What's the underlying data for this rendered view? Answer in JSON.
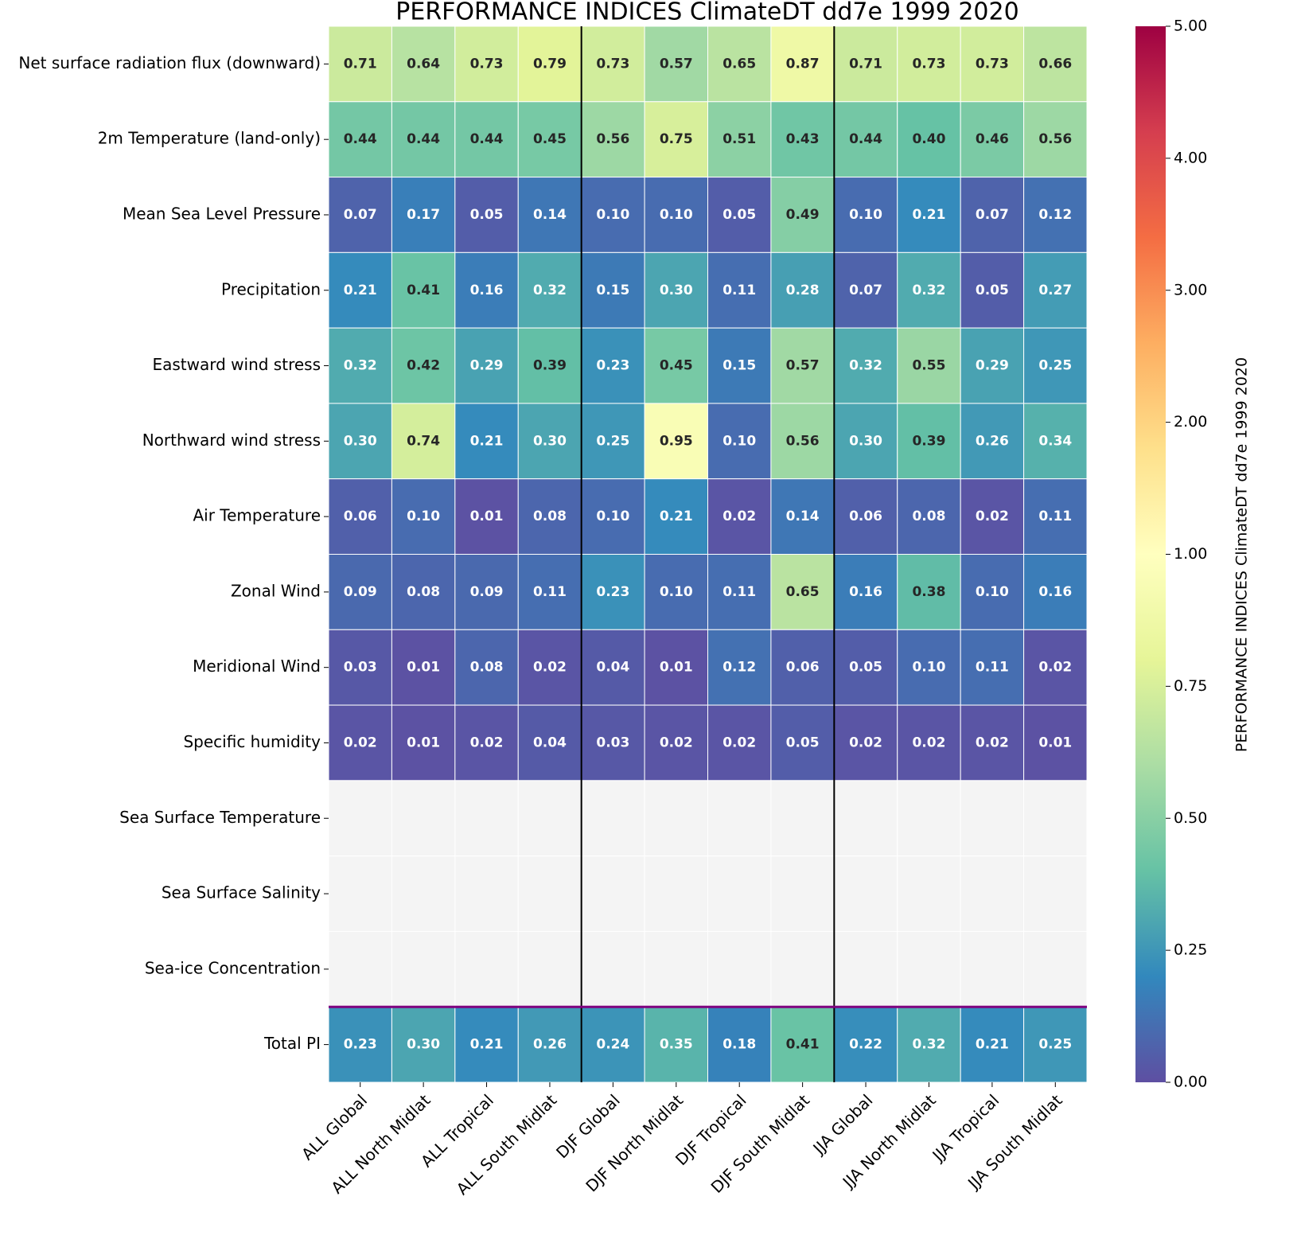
{
  "chart_data": {
    "type": "heatmap",
    "title": "PERFORMANCE INDICES ClimateDT dd7e 1999 2020",
    "rows": [
      "Net surface radiation flux (downward)",
      "2m Temperature (land-only)",
      "Mean Sea Level Pressure",
      "Precipitation",
      "Eastward wind stress",
      "Northward wind stress",
      "Air Temperature",
      "Zonal Wind",
      "Meridional Wind",
      "Specific humidity",
      "Sea Surface Temperature",
      "Sea Surface Salinity",
      "Sea-ice Concentration",
      "Total PI"
    ],
    "categories": [
      "ALL Global",
      "ALL North Midlat",
      "ALL Tropical",
      "ALL South Midlat",
      "DJF Global",
      "DJF North Midlat",
      "DJF Tropical",
      "DJF South Midlat",
      "JJA Global",
      "JJA North Midlat",
      "JJA Tropical",
      "JJA South Midlat"
    ],
    "values": [
      [
        0.71,
        0.64,
        0.73,
        0.79,
        0.73,
        0.57,
        0.65,
        0.87,
        0.71,
        0.73,
        0.73,
        0.66
      ],
      [
        0.44,
        0.44,
        0.44,
        0.45,
        0.56,
        0.75,
        0.51,
        0.43,
        0.44,
        0.4,
        0.46,
        0.56
      ],
      [
        0.07,
        0.17,
        0.05,
        0.14,
        0.1,
        0.1,
        0.05,
        0.49,
        0.1,
        0.21,
        0.07,
        0.12
      ],
      [
        0.21,
        0.41,
        0.16,
        0.32,
        0.15,
        0.3,
        0.11,
        0.28,
        0.07,
        0.32,
        0.05,
        0.27
      ],
      [
        0.32,
        0.42,
        0.29,
        0.39,
        0.23,
        0.45,
        0.15,
        0.57,
        0.32,
        0.55,
        0.29,
        0.25
      ],
      [
        0.3,
        0.74,
        0.21,
        0.3,
        0.25,
        0.95,
        0.1,
        0.56,
        0.3,
        0.39,
        0.26,
        0.34
      ],
      [
        0.06,
        0.1,
        0.01,
        0.08,
        0.1,
        0.21,
        0.02,
        0.14,
        0.06,
        0.08,
        0.02,
        0.11
      ],
      [
        0.09,
        0.08,
        0.09,
        0.11,
        0.23,
        0.1,
        0.11,
        0.65,
        0.16,
        0.38,
        0.1,
        0.16
      ],
      [
        0.03,
        0.01,
        0.08,
        0.02,
        0.04,
        0.01,
        0.12,
        0.06,
        0.05,
        0.1,
        0.11,
        0.02
      ],
      [
        0.02,
        0.01,
        0.02,
        0.04,
        0.03,
        0.02,
        0.02,
        0.05,
        0.02,
        0.02,
        0.02,
        0.01
      ],
      [
        null,
        null,
        null,
        null,
        null,
        null,
        null,
        null,
        null,
        null,
        null,
        null
      ],
      [
        null,
        null,
        null,
        null,
        null,
        null,
        null,
        null,
        null,
        null,
        null,
        null
      ],
      [
        null,
        null,
        null,
        null,
        null,
        null,
        null,
        null,
        null,
        null,
        null,
        null
      ],
      [
        0.23,
        0.3,
        0.21,
        0.26,
        0.24,
        0.35,
        0.18,
        0.41,
        0.22,
        0.32,
        0.21,
        0.25
      ]
    ],
    "value_labels": [
      [
        "0.71",
        "0.64",
        "0.73",
        "0.79",
        "0.73",
        "0.57",
        "0.65",
        "0.87",
        "0.71",
        "0.73",
        "0.73",
        "0.66"
      ],
      [
        "0.44",
        "0.44",
        "0.44",
        "0.45",
        "0.56",
        "0.75",
        "0.51",
        "0.43",
        "0.44",
        "0.40",
        "0.46",
        "0.56"
      ],
      [
        "0.07",
        "0.17",
        "0.05",
        "0.14",
        "0.10",
        "0.10",
        "0.05",
        "0.49",
        "0.10",
        "0.21",
        "0.07",
        "0.12"
      ],
      [
        "0.21",
        "0.41",
        "0.16",
        "0.32",
        "0.15",
        "0.30",
        "0.11",
        "0.28",
        "0.07",
        "0.32",
        "0.05",
        "0.27"
      ],
      [
        "0.32",
        "0.42",
        "0.29",
        "0.39",
        "0.23",
        "0.45",
        "0.15",
        "0.57",
        "0.32",
        "0.55",
        "0.29",
        "0.25"
      ],
      [
        "0.30",
        "0.74",
        "0.21",
        "0.30",
        "0.25",
        "0.95",
        "0.10",
        "0.56",
        "0.30",
        "0.39",
        "0.26",
        "0.34"
      ],
      [
        "0.06",
        "0.10",
        "0.01",
        "0.08",
        "0.10",
        "0.21",
        "0.02",
        "0.14",
        "0.06",
        "0.08",
        "0.02",
        "0.11"
      ],
      [
        "0.09",
        "0.08",
        "0.09",
        "0.11",
        "0.23",
        "0.10",
        "0.11",
        "0.65",
        "0.16",
        "0.38",
        "0.10",
        "0.16"
      ],
      [
        "0.03",
        "0.01",
        "0.08",
        "0.02",
        "0.04",
        "0.01",
        "0.12",
        "0.06",
        "0.05",
        "0.10",
        "0.11",
        "0.02"
      ],
      [
        "0.02",
        "0.01",
        "0.02",
        "0.04",
        "0.03",
        "0.02",
        "0.02",
        "0.05",
        "0.02",
        "0.02",
        "0.02",
        "0.01"
      ],
      [
        null,
        null,
        null,
        null,
        null,
        null,
        null,
        null,
        null,
        null,
        null,
        null
      ],
      [
        null,
        null,
        null,
        null,
        null,
        null,
        null,
        null,
        null,
        null,
        null,
        null
      ],
      [
        null,
        null,
        null,
        null,
        null,
        null,
        null,
        null,
        null,
        null,
        null,
        null
      ],
      [
        "0.23",
        "0.30",
        "0.21",
        "0.26",
        "0.24",
        "0.35",
        "0.18",
        "0.41",
        "0.22",
        "0.32",
        "0.21",
        "0.25"
      ]
    ],
    "colormap": [
      "#5e4fa2",
      "#3288bd",
      "#66c2a5",
      "#abdda4",
      "#e6f598",
      "#ffffbf",
      "#fee08b",
      "#fdae61",
      "#f46d43",
      "#d53e4f",
      "#9e0142"
    ],
    "missing_color": "#f4f4f4",
    "colorbar_label": "PERFORMANCE INDICES ClimateDT dd7e 1999 2020",
    "clim": [
      0,
      5
    ],
    "cticks": [
      {
        "value": 0,
        "label": "0.00"
      },
      {
        "value": 0.25,
        "label": "0.25"
      },
      {
        "value": 0.5,
        "label": "0.50"
      },
      {
        "value": 0.75,
        "label": "0.75"
      },
      {
        "value": 1,
        "label": "1.00"
      },
      {
        "value": 2,
        "label": "2.00"
      },
      {
        "value": 3,
        "label": "3.00"
      },
      {
        "value": 4,
        "label": "4.00"
      },
      {
        "value": 5,
        "label": "5.00"
      }
    ]
  }
}
